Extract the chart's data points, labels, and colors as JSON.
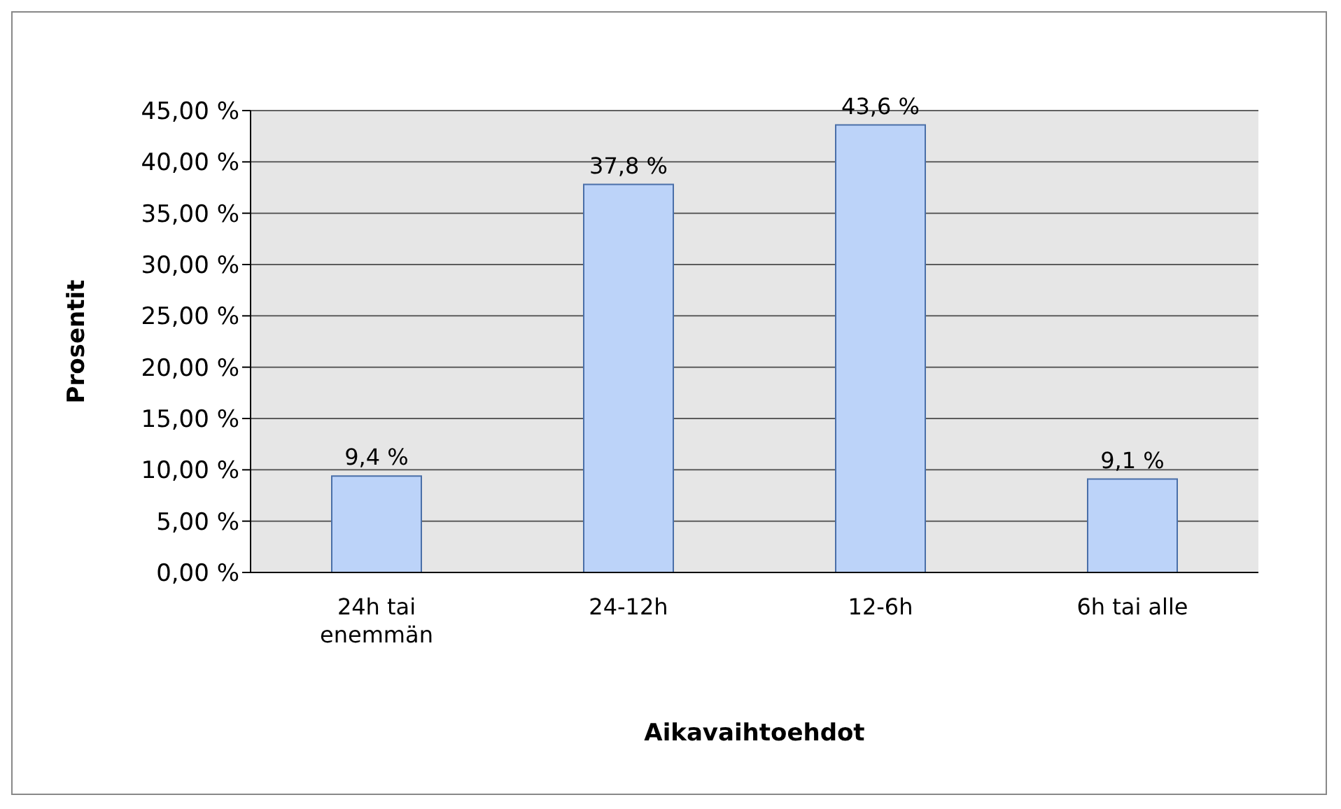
{
  "chart_data": {
    "type": "bar",
    "xlabel": "Aikavaihtoehdot",
    "ylabel": "Prosentit",
    "categories": [
      "24h tai enemmän",
      "24-12h",
      "12-6h",
      "6h tai alle"
    ],
    "values": [
      9.4,
      37.8,
      43.6,
      9.1
    ],
    "value_labels": [
      "9,4 %",
      "37,8 %",
      "43,6 %",
      "9,1 %"
    ],
    "color": "#bcd3f9",
    "ylim": [
      0,
      45
    ],
    "yticks": [
      {
        "value": 0,
        "label": "0,00 %"
      },
      {
        "value": 5,
        "label": "5,00 %"
      },
      {
        "value": 10,
        "label": "10,00 %"
      },
      {
        "value": 15,
        "label": "15,00 %"
      },
      {
        "value": 20,
        "label": "20,00 %"
      },
      {
        "value": 25,
        "label": "25,00 %"
      },
      {
        "value": 30,
        "label": "30,00 %"
      },
      {
        "value": 35,
        "label": "35,00 %"
      },
      {
        "value": 40,
        "label": "40,00 %"
      },
      {
        "value": 45,
        "label": "45,00 %"
      }
    ],
    "grid": "y",
    "legend": false
  }
}
